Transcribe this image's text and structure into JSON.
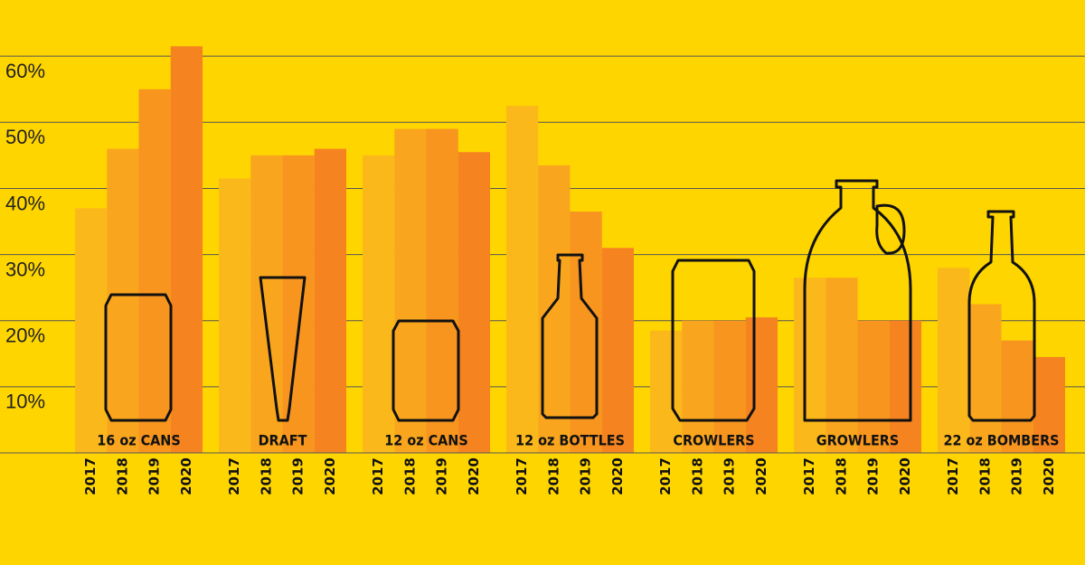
{
  "chart_data": {
    "type": "bar",
    "categories": [
      "16 oz CANS",
      "DRAFT",
      "12 oz CANS",
      "12 oz BOTTLES",
      "CROWLERS",
      "GROWLERS",
      "22 oz BOMBERS"
    ],
    "series": [
      {
        "name": "2017",
        "color": "#fbb81b",
        "values": [
          37,
          41.5,
          45,
          52.5,
          18.5,
          26.5,
          28
        ]
      },
      {
        "name": "2018",
        "color": "#f9a61e",
        "values": [
          46,
          45,
          49,
          43.5,
          20,
          26.5,
          22.5
        ]
      },
      {
        "name": "2019",
        "color": "#f7951f",
        "values": [
          55,
          45,
          49,
          36.5,
          20,
          20,
          17
        ]
      },
      {
        "name": "2020",
        "color": "#f58420",
        "values": [
          61.5,
          46,
          45.5,
          31,
          20.5,
          20,
          14.5
        ]
      }
    ],
    "ylim": [
      0,
      68.5
    ],
    "yticks": [
      {
        "value": 10,
        "label": "10%"
      },
      {
        "value": 20,
        "label": "20%"
      },
      {
        "value": 30,
        "label": "30%"
      },
      {
        "value": 40,
        "label": "40%"
      },
      {
        "value": 50,
        "label": "50%"
      },
      {
        "value": 60,
        "label": "60%"
      }
    ],
    "grid": true
  }
}
